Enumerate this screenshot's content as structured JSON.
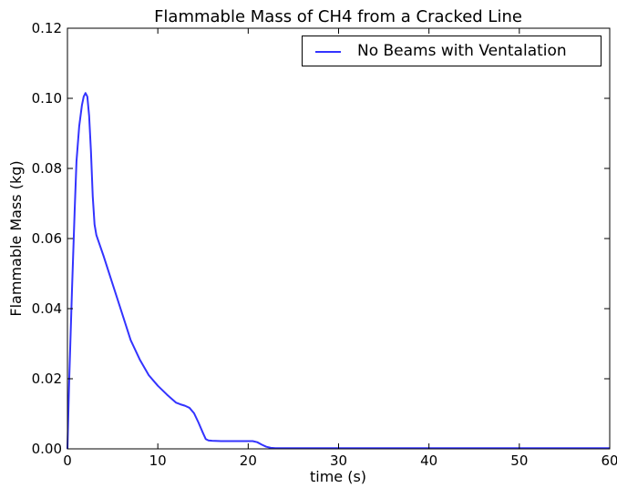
{
  "chart_data": {
    "type": "line",
    "title": "Flammable Mass of CH4 from a Cracked Line",
    "xlabel": "time (s)",
    "ylabel": "Flammable Mass (kg)",
    "xlim": [
      0,
      60
    ],
    "ylim": [
      0,
      0.12
    ],
    "xticks": [
      0,
      10,
      20,
      30,
      40,
      50,
      60
    ],
    "yticks": [
      0.0,
      0.02,
      0.04,
      0.06,
      0.08,
      0.1,
      0.12
    ],
    "xtick_labels": [
      "0",
      "10",
      "20",
      "30",
      "40",
      "50",
      "60"
    ],
    "ytick_labels": [
      "0.00",
      "0.02",
      "0.04",
      "0.06",
      "0.08",
      "0.10",
      "0.12"
    ],
    "grid": false,
    "legend_position": "top-right",
    "series": [
      {
        "name": "No Beams with Ventalation",
        "color": "#3333ff",
        "x": [
          0,
          0.2,
          0.5,
          0.8,
          1.0,
          1.3,
          1.6,
          1.8,
          2.0,
          2.2,
          2.4,
          2.6,
          2.8,
          3.0,
          3.2,
          4.0,
          5.0,
          6.0,
          7.0,
          8.0,
          9.0,
          10.0,
          11.0,
          12.0,
          12.5,
          13.0,
          13.5,
          14.0,
          14.5,
          15.0,
          15.3,
          15.6,
          16.0,
          17.0,
          18.0,
          19.0,
          20.0,
          20.5,
          21.0,
          21.5,
          22.0,
          22.5,
          23.0,
          25.0,
          30.0,
          40.0,
          50.0,
          60.0
        ],
        "y": [
          0.0,
          0.02,
          0.045,
          0.068,
          0.082,
          0.092,
          0.098,
          0.1005,
          0.1015,
          0.1005,
          0.095,
          0.085,
          0.072,
          0.064,
          0.061,
          0.055,
          0.047,
          0.039,
          0.031,
          0.0255,
          0.021,
          0.018,
          0.0155,
          0.0132,
          0.0127,
          0.0123,
          0.0117,
          0.0102,
          0.0075,
          0.0045,
          0.0028,
          0.0024,
          0.0023,
          0.0022,
          0.0022,
          0.0022,
          0.0022,
          0.0022,
          0.0019,
          0.0012,
          0.0006,
          0.0003,
          0.0002,
          0.0002,
          0.0002,
          0.0002,
          0.0002,
          0.0002
        ]
      }
    ]
  }
}
